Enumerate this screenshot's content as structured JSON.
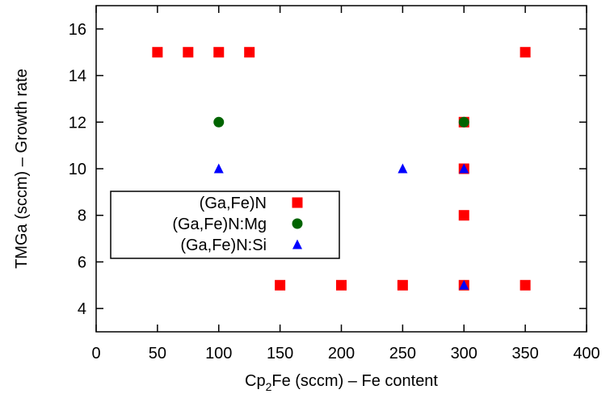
{
  "chart_data": {
    "type": "scatter",
    "xlabel": {
      "prefix": "Cp",
      "sub": "2",
      "suffix": "Fe (sccm) – Fe content"
    },
    "ylabel": "TMGa (sccm) – Growth rate",
    "xlim": [
      0,
      400
    ],
    "ylim": [
      3,
      17
    ],
    "xticks": [
      0,
      50,
      100,
      150,
      200,
      250,
      300,
      350,
      400
    ],
    "yticks": [
      4,
      6,
      8,
      10,
      12,
      14,
      16
    ],
    "grid": false,
    "legend_position": "left-middle",
    "series": [
      {
        "name": "(Ga,Fe)N",
        "marker": "square",
        "color": "#ff0000",
        "points": [
          [
            50,
            15
          ],
          [
            75,
            15
          ],
          [
            100,
            15
          ],
          [
            125,
            15
          ],
          [
            350,
            15
          ],
          [
            300,
            12
          ],
          [
            300,
            10
          ],
          [
            300,
            8
          ],
          [
            150,
            5
          ],
          [
            200,
            5
          ],
          [
            250,
            5
          ],
          [
            300,
            5
          ],
          [
            350,
            5
          ]
        ]
      },
      {
        "name": "(Ga,Fe)N:Mg",
        "marker": "circle",
        "color": "#006400",
        "points": [
          [
            100,
            12
          ],
          [
            300,
            12
          ]
        ]
      },
      {
        "name": "(Ga,Fe)N:Si",
        "marker": "triangle",
        "color": "#0000ff",
        "points": [
          [
            100,
            10
          ],
          [
            250,
            10
          ],
          [
            300,
            10
          ],
          [
            300,
            5
          ]
        ]
      }
    ]
  }
}
